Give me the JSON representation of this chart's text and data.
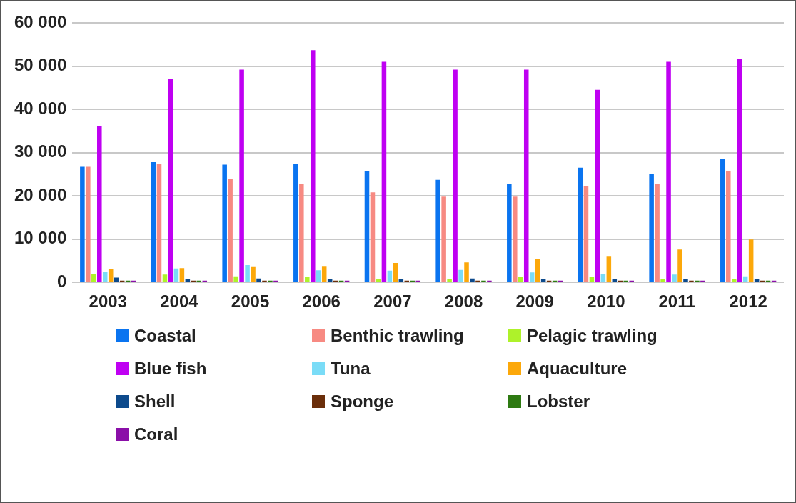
{
  "chart_data": {
    "type": "bar",
    "categories": [
      "2003",
      "2004",
      "2005",
      "2006",
      "2007",
      "2008",
      "2009",
      "2010",
      "2011",
      "2012"
    ],
    "series": [
      {
        "name": "Coastal",
        "color": "#0a74f0",
        "values": [
          26700,
          27800,
          27200,
          27300,
          25800,
          23700,
          22800,
          26500,
          25000,
          28500
        ]
      },
      {
        "name": "Benthic trawling",
        "color": "#f78a82",
        "values": [
          26700,
          27400,
          24000,
          22700,
          20800,
          19800,
          19800,
          22200,
          22700,
          25700
        ]
      },
      {
        "name": "Pelagic trawling",
        "color": "#aef22a",
        "values": [
          2000,
          1800,
          1400,
          1200,
          700,
          700,
          1200,
          1200,
          700,
          700
        ]
      },
      {
        "name": "Blue fish",
        "color": "#bf00f2",
        "values": [
          36200,
          47000,
          49200,
          53700,
          51000,
          49200,
          49200,
          44500,
          51000,
          51600
        ]
      },
      {
        "name": "Tuna",
        "color": "#7adcf7",
        "values": [
          2500,
          3200,
          4000,
          2800,
          2700,
          2900,
          2300,
          2000,
          1800,
          1400
        ]
      },
      {
        "name": "Aquaculture",
        "color": "#fca80a",
        "values": [
          3100,
          3300,
          3700,
          3800,
          4500,
          4600,
          5400,
          6100,
          7600,
          9900
        ]
      },
      {
        "name": "Shell",
        "color": "#0d4a8c",
        "values": [
          1100,
          700,
          900,
          800,
          800,
          900,
          800,
          800,
          800,
          700
        ]
      },
      {
        "name": "Sponge",
        "color": "#6b2e0a",
        "values": [
          400,
          400,
          400,
          400,
          400,
          400,
          400,
          400,
          400,
          400
        ]
      },
      {
        "name": "Lobster",
        "color": "#2e7a12",
        "values": [
          400,
          400,
          400,
          400,
          400,
          400,
          400,
          400,
          400,
          400
        ]
      },
      {
        "name": "Coral",
        "color": "#8a0fa8",
        "values": [
          400,
          400,
          400,
          400,
          400,
          400,
          400,
          400,
          400,
          400
        ]
      }
    ],
    "ylim": [
      0,
      60000
    ],
    "yticks": [
      {
        "value": 0,
        "label": "0"
      },
      {
        "value": 10000,
        "label": "10 000"
      },
      {
        "value": 20000,
        "label": "20 000"
      },
      {
        "value": 30000,
        "label": "30 000"
      },
      {
        "value": 40000,
        "label": "40 000"
      },
      {
        "value": 50000,
        "label": "50 000"
      },
      {
        "value": 60000,
        "label": "60 000"
      }
    ],
    "grid": "y",
    "legend": "bottom"
  }
}
